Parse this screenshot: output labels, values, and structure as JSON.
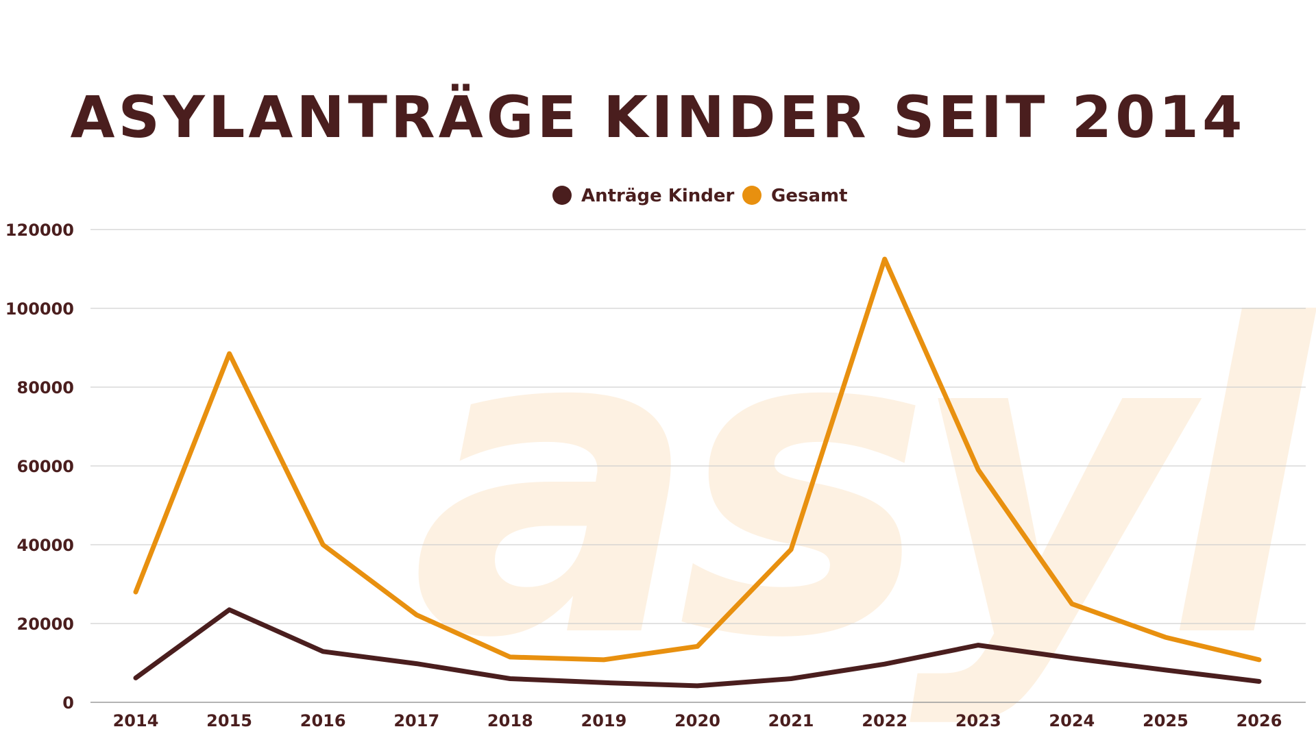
{
  "watermark": "asyl",
  "chart_data": {
    "type": "line",
    "title": "ASYLANTRÄGE  KINDER SEIT 2014",
    "xlabel": "",
    "ylabel": "",
    "categories": [
      "2014",
      "2015",
      "2016",
      "2017",
      "2018",
      "2019",
      "2020",
      "2021",
      "2022",
      "2023",
      "2024",
      "2025",
      "2026"
    ],
    "series": [
      {
        "name": "Anträge Kinder",
        "color": "#4a1e1e",
        "values": [
          6200,
          23500,
          12900,
          9800,
          6000,
          5000,
          4200,
          6000,
          9700,
          14500,
          11200,
          8200,
          5300
        ]
      },
      {
        "name": "Gesamt",
        "color": "#e8900f",
        "values": [
          28000,
          88500,
          40000,
          22200,
          11500,
          10800,
          14200,
          38800,
          112500,
          59000,
          25000,
          16500,
          10800
        ]
      }
    ],
    "ylim": [
      0,
      120000
    ],
    "yticks": [
      "0",
      "20000",
      "40000",
      "60000",
      "80000",
      "100000",
      "120000"
    ],
    "grid": true,
    "legend_position": "top-center"
  }
}
